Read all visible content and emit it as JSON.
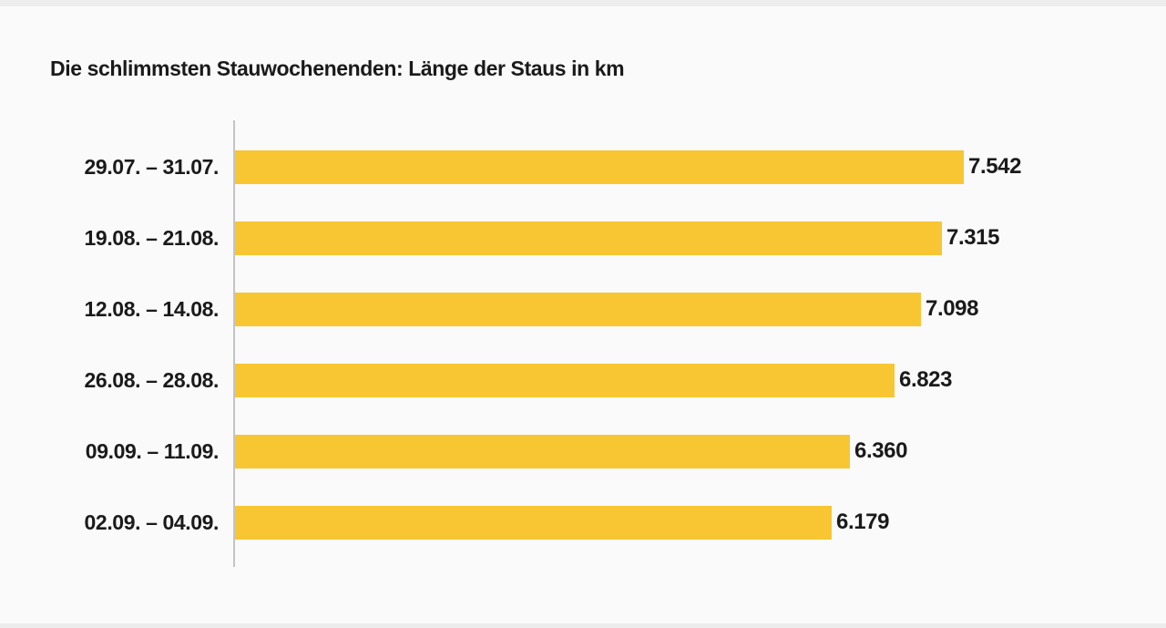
{
  "title": "Die schlimmsten Stauwochenenden: Länge der Staus in km",
  "colors": {
    "bar": "#f8c632",
    "axis": "#c4c4c4",
    "background": "#fafafa",
    "text": "#1a1a1a"
  },
  "chart_data": {
    "type": "bar",
    "orientation": "horizontal",
    "title": "Die schlimmsten Stauwochenenden: Länge der Staus in km",
    "unit": "km",
    "categories": [
      "29.07. – 31.07.",
      "19.08. – 21.08.",
      "12.08. – 14.08.",
      "26.08. – 28.08.",
      "09.09. – 11.09.",
      "02.09. – 04.09."
    ],
    "values": [
      7542,
      7315,
      7098,
      6823,
      6360,
      6179
    ],
    "value_labels": [
      "7.542",
      "7.315",
      "7.098",
      "6.823",
      "6.360",
      "6.179"
    ],
    "xlim": [
      0,
      7542
    ],
    "grid": false,
    "legend": null,
    "bar_color": "#f8c632"
  }
}
